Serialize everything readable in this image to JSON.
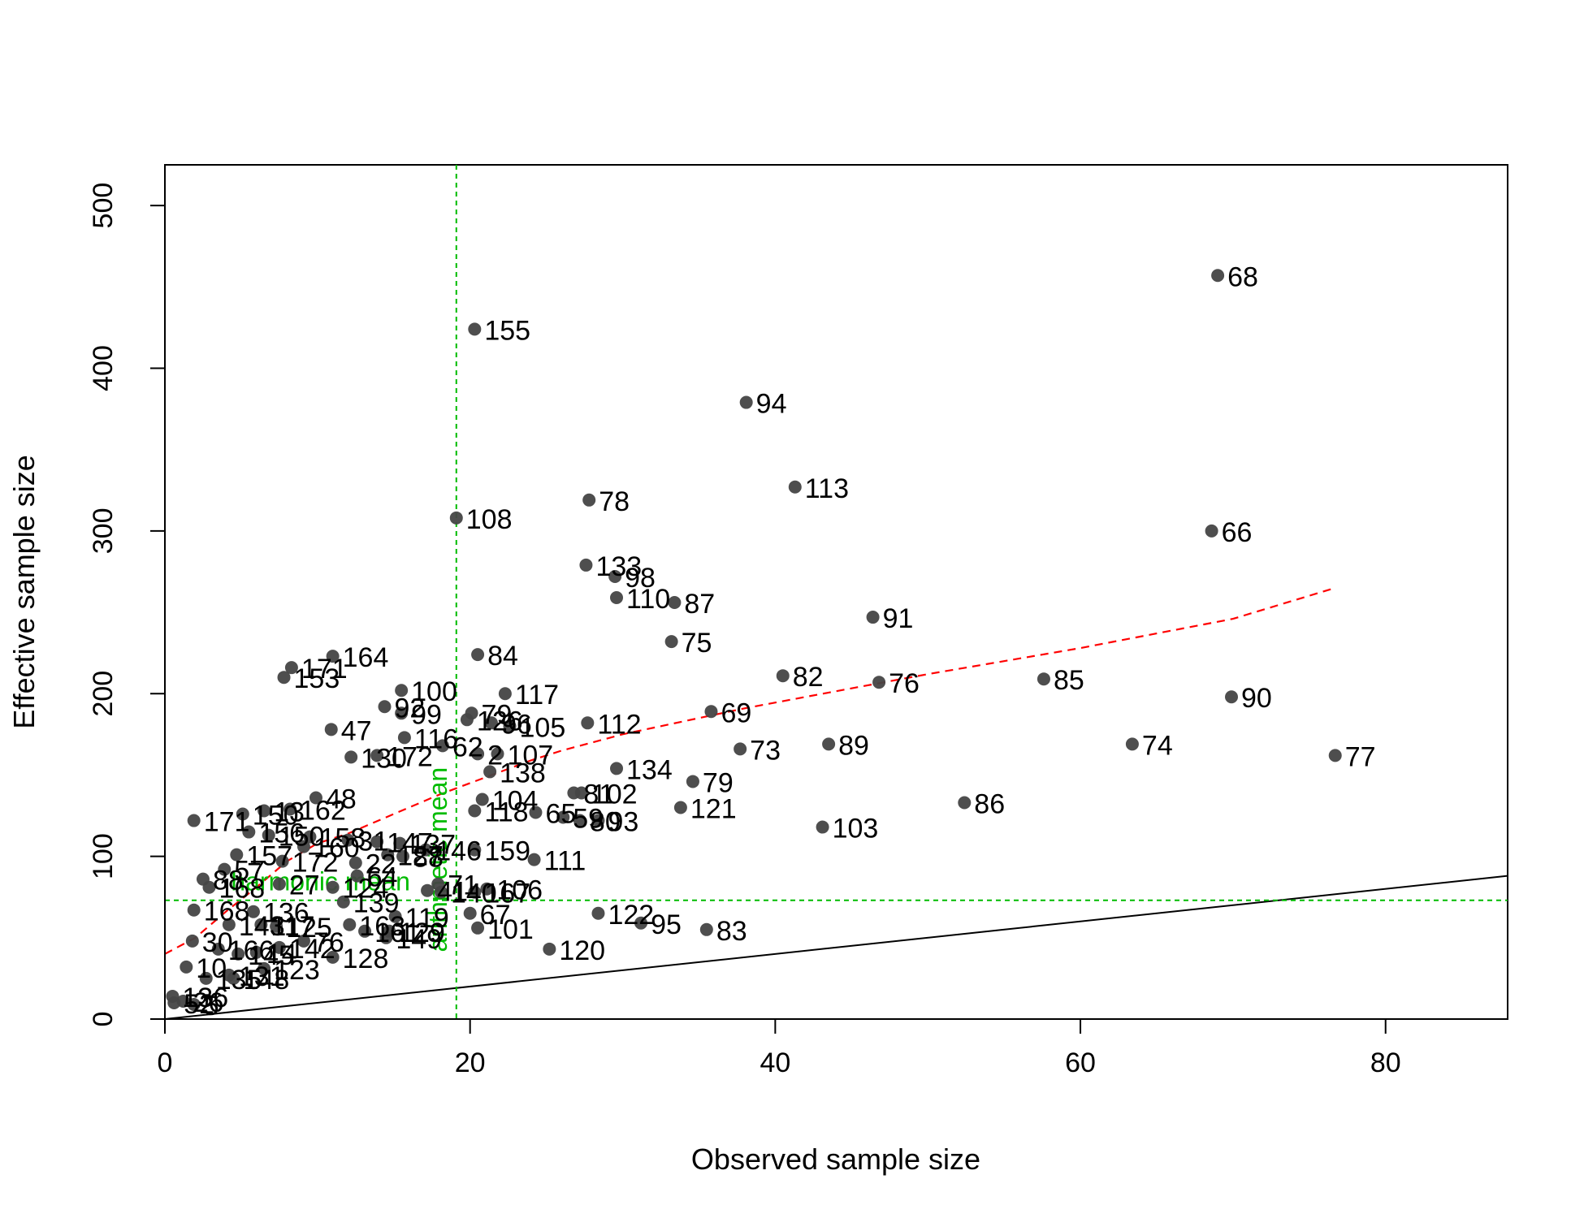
{
  "chart_data": {
    "type": "scatter",
    "title": "",
    "xlabel": "Observed sample size",
    "ylabel": "Effective sample size",
    "xlim": [
      0,
      88
    ],
    "ylim": [
      0,
      525
    ],
    "xticks": [
      0,
      20,
      40,
      60,
      80
    ],
    "yticks": [
      0,
      100,
      200,
      300,
      400,
      500
    ],
    "grid": false,
    "legend": "none",
    "colors": {
      "points": "#444444",
      "smooth_line": "#ff0000",
      "identity_line": "#000000",
      "reference_lines": "#00bb00"
    },
    "points": [
      {
        "label": "68",
        "x": 69,
        "y": 457
      },
      {
        "label": "155",
        "x": 20.3,
        "y": 424
      },
      {
        "label": "94",
        "x": 38.1,
        "y": 379
      },
      {
        "label": "113",
        "x": 41.3,
        "y": 327
      },
      {
        "label": "78",
        "x": 27.8,
        "y": 319
      },
      {
        "label": "108",
        "x": 19.1,
        "y": 308
      },
      {
        "label": "66",
        "x": 68.6,
        "y": 300
      },
      {
        "label": "133",
        "x": 27.6,
        "y": 279
      },
      {
        "label": "98",
        "x": 29.5,
        "y": 272
      },
      {
        "label": "110",
        "x": 29.6,
        "y": 259
      },
      {
        "label": "87",
        "x": 33.4,
        "y": 256
      },
      {
        "label": "91",
        "x": 46.4,
        "y": 247
      },
      {
        "label": "75",
        "x": 33.2,
        "y": 232
      },
      {
        "label": "84",
        "x": 20.5,
        "y": 224
      },
      {
        "label": "164",
        "x": 11,
        "y": 223
      },
      {
        "label": "171",
        "x": 8.3,
        "y": 216
      },
      {
        "label": "153",
        "x": 7.8,
        "y": 210
      },
      {
        "label": "82",
        "x": 40.5,
        "y": 211
      },
      {
        "label": "76",
        "x": 46.8,
        "y": 207
      },
      {
        "label": "85",
        "x": 57.6,
        "y": 209
      },
      {
        "label": "100",
        "x": 15.5,
        "y": 202
      },
      {
        "label": "117",
        "x": 22.3,
        "y": 200
      },
      {
        "label": "90",
        "x": 69.9,
        "y": 198
      },
      {
        "label": "92",
        "x": 14.4,
        "y": 192
      },
      {
        "label": "69",
        "x": 35.8,
        "y": 189
      },
      {
        "label": "99",
        "x": 15.5,
        "y": 188
      },
      {
        "label": "79",
        "x": 20.1,
        "y": 188
      },
      {
        "label": "126",
        "x": 19.8,
        "y": 184
      },
      {
        "label": "96",
        "x": 21.4,
        "y": 182
      },
      {
        "label": "105",
        "x": 22.6,
        "y": 180
      },
      {
        "label": "112",
        "x": 27.7,
        "y": 182
      },
      {
        "label": "47",
        "x": 10.9,
        "y": 178
      },
      {
        "label": "116",
        "x": 15.7,
        "y": 173
      },
      {
        "label": "62",
        "x": 18.2,
        "y": 168
      },
      {
        "label": "74",
        "x": 63.4,
        "y": 169
      },
      {
        "label": "89",
        "x": 43.5,
        "y": 169
      },
      {
        "label": "73",
        "x": 37.7,
        "y": 166
      },
      {
        "label": "2",
        "x": 20.5,
        "y": 163
      },
      {
        "label": "107",
        "x": 21.8,
        "y": 163
      },
      {
        "label": "172",
        "x": 13.9,
        "y": 162
      },
      {
        "label": "130",
        "x": 12.2,
        "y": 161
      },
      {
        "label": "77",
        "x": 76.7,
        "y": 162
      },
      {
        "label": "134",
        "x": 29.6,
        "y": 154
      },
      {
        "label": "138",
        "x": 21.3,
        "y": 152
      },
      {
        "label": "79",
        "x": 34.6,
        "y": 146
      },
      {
        "label": "48",
        "x": 9.9,
        "y": 136
      },
      {
        "label": "104",
        "x": 20.8,
        "y": 135
      },
      {
        "label": "81",
        "x": 26.8,
        "y": 139
      },
      {
        "label": "102",
        "x": 27.3,
        "y": 139
      },
      {
        "label": "86",
        "x": 52.4,
        "y": 133
      },
      {
        "label": "121",
        "x": 33.8,
        "y": 130
      },
      {
        "label": "162",
        "x": 8.2,
        "y": 129
      },
      {
        "label": "13",
        "x": 6.5,
        "y": 128
      },
      {
        "label": "150",
        "x": 5.1,
        "y": 126
      },
      {
        "label": "118",
        "x": 20.3,
        "y": 128
      },
      {
        "label": "65",
        "x": 24.3,
        "y": 127
      },
      {
        "label": "59",
        "x": 26.1,
        "y": 124
      },
      {
        "label": "80",
        "x": 27.2,
        "y": 122
      },
      {
        "label": "93",
        "x": 28.4,
        "y": 122
      },
      {
        "label": "171",
        "x": 1.9,
        "y": 122
      },
      {
        "label": "103",
        "x": 43.1,
        "y": 118
      },
      {
        "label": "156",
        "x": 5.5,
        "y": 115
      },
      {
        "label": "150",
        "x": 6.8,
        "y": 113
      },
      {
        "label": "158",
        "x": 9.5,
        "y": 112
      },
      {
        "label": "31",
        "x": 12,
        "y": 110
      },
      {
        "label": "147",
        "x": 13.9,
        "y": 109
      },
      {
        "label": "137",
        "x": 15.4,
        "y": 108
      },
      {
        "label": "160",
        "x": 9.1,
        "y": 106
      },
      {
        "label": "146",
        "x": 17.1,
        "y": 104
      },
      {
        "label": "159",
        "x": 20.3,
        "y": 104
      },
      {
        "label": "157",
        "x": 4.7,
        "y": 101
      },
      {
        "label": "127",
        "x": 14.6,
        "y": 101
      },
      {
        "label": "88",
        "x": 15.6,
        "y": 100
      },
      {
        "label": "111",
        "x": 24.2,
        "y": 98
      },
      {
        "label": "172",
        "x": 7.7,
        "y": 97
      },
      {
        "label": "22",
        "x": 12.5,
        "y": 96
      },
      {
        "label": "57",
        "x": 3.9,
        "y": 92
      },
      {
        "label": "64",
        "x": 12.6,
        "y": 88
      },
      {
        "label": "88",
        "x": 2.5,
        "y": 86
      },
      {
        "label": "168",
        "x": 2.9,
        "y": 81
      },
      {
        "label": "71",
        "x": 17.9,
        "y": 83
      },
      {
        "label": "27",
        "x": 7.5,
        "y": 83
      },
      {
        "label": "124",
        "x": 11,
        "y": 81
      },
      {
        "label": "106",
        "x": 21.1,
        "y": 80
      },
      {
        "label": "41",
        "x": 17.2,
        "y": 79
      },
      {
        "label": "140",
        "x": 18.1,
        "y": 78
      },
      {
        "label": "167",
        "x": 20.3,
        "y": 78
      },
      {
        "label": "139",
        "x": 11.7,
        "y": 72
      },
      {
        "label": "168",
        "x": 1.9,
        "y": 67
      },
      {
        "label": "136",
        "x": 5.8,
        "y": 66
      },
      {
        "label": "119",
        "x": 15.1,
        "y": 63
      },
      {
        "label": "67",
        "x": 20,
        "y": 65
      },
      {
        "label": "122",
        "x": 28.4,
        "y": 65
      },
      {
        "label": "95",
        "x": 31.2,
        "y": 59
      },
      {
        "label": "83",
        "x": 35.5,
        "y": 55
      },
      {
        "label": "101",
        "x": 20.5,
        "y": 56
      },
      {
        "label": "143",
        "x": 4.2,
        "y": 58
      },
      {
        "label": "117",
        "x": 6.3,
        "y": 58
      },
      {
        "label": "125",
        "x": 7.3,
        "y": 57
      },
      {
        "label": "163",
        "x": 12.1,
        "y": 58
      },
      {
        "label": "161",
        "x": 13.1,
        "y": 54
      },
      {
        "label": "129",
        "x": 14.7,
        "y": 54
      },
      {
        "label": "149",
        "x": 14.5,
        "y": 50
      },
      {
        "label": "76",
        "x": 9.1,
        "y": 48
      },
      {
        "label": "120",
        "x": 25.2,
        "y": 43
      },
      {
        "label": "128",
        "x": 11,
        "y": 38
      },
      {
        "label": "166",
        "x": 3.5,
        "y": 43
      },
      {
        "label": "145",
        "x": 4.8,
        "y": 40
      },
      {
        "label": "14",
        "x": 6,
        "y": 41
      },
      {
        "label": "142",
        "x": 7.5,
        "y": 44
      },
      {
        "label": "30",
        "x": 1.8,
        "y": 48
      },
      {
        "label": "123",
        "x": 6.5,
        "y": 31
      },
      {
        "label": "131",
        "x": 4.2,
        "y": 27
      },
      {
        "label": "135",
        "x": 2.7,
        "y": 25
      },
      {
        "label": "148",
        "x": 4.5,
        "y": 25
      },
      {
        "label": "10",
        "x": 1.4,
        "y": 32
      },
      {
        "label": "136",
        "x": 0.5,
        "y": 14
      },
      {
        "label": "52",
        "x": 0.6,
        "y": 10
      },
      {
        "label": "26",
        "x": 1.2,
        "y": 11
      },
      {
        "label": "5",
        "x": 1.9,
        "y": 9
      }
    ],
    "smooth_line": {
      "x": [
        0,
        2,
        4,
        6,
        8,
        10,
        12,
        14,
        16,
        18,
        20,
        22,
        24,
        26,
        28,
        30,
        34,
        38,
        42,
        46,
        50,
        55,
        60,
        65,
        70,
        76.7
      ],
      "y": [
        40,
        50,
        66,
        81,
        97,
        108,
        114,
        122,
        130,
        138,
        145,
        152,
        159,
        165,
        170,
        175,
        183,
        191,
        198,
        205,
        212,
        220,
        228,
        237,
        246,
        265
      ]
    },
    "identity_line": {
      "x": [
        0,
        88
      ],
      "y": [
        0,
        88
      ]
    },
    "reference_lines": [
      {
        "orientation": "vertical",
        "value": 19.1,
        "label": "arithmetic mean"
      },
      {
        "orientation": "horizontal",
        "value": 73,
        "label": "harmonic mean"
      }
    ]
  }
}
